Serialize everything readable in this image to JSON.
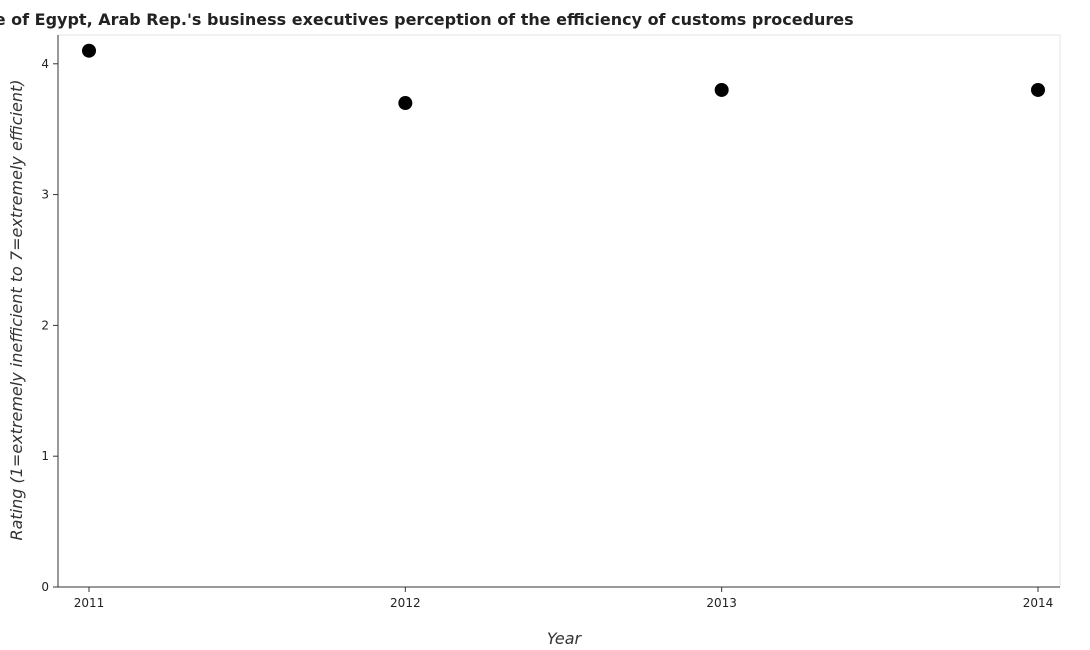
{
  "chart_data": {
    "type": "scatter",
    "title": "Measure of Egypt, Arab Rep.'s business executives perception of the efficiency of customs procedures",
    "xlabel": "Year",
    "ylabel": "Rating (1=extremely inefficient to 7=extremely efficient)",
    "categories": [
      "2011",
      "2012",
      "2013",
      "2014"
    ],
    "values": [
      4.1,
      3.7,
      3.8,
      3.8
    ],
    "yticks": [
      "0",
      "1",
      "2",
      "3",
      "4"
    ],
    "ylim": [
      0,
      4.22
    ],
    "grid": false,
    "legend": "none",
    "marker_color": "#000000"
  }
}
